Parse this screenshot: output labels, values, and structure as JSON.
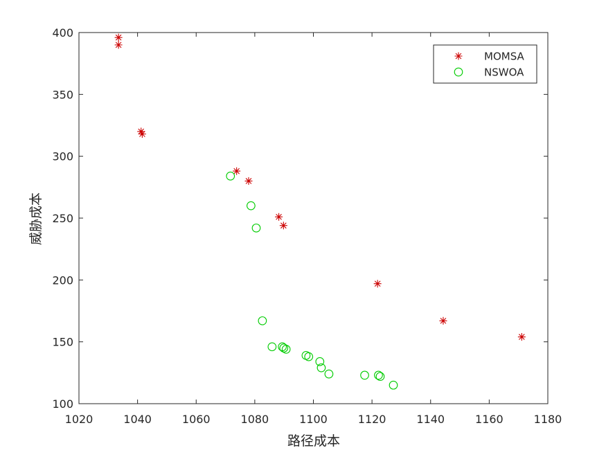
{
  "chart_data": {
    "type": "scatter",
    "title": "",
    "xlabel": "路径成本",
    "ylabel": "威胁成本",
    "xlim": [
      1020,
      1180
    ],
    "ylim": [
      100,
      400
    ],
    "xticks": [
      1020,
      1040,
      1060,
      1080,
      1100,
      1120,
      1140,
      1160,
      1180
    ],
    "yticks": [
      100,
      150,
      200,
      250,
      300,
      350,
      400
    ],
    "grid": false,
    "legend_position": "top-right",
    "series": [
      {
        "name": "MOMSA",
        "marker": "asterisk",
        "color": "#cc0000",
        "points": [
          [
            1033.5,
            396
          ],
          [
            1033.5,
            390
          ],
          [
            1041.2,
            320
          ],
          [
            1041.6,
            318
          ],
          [
            1073.8,
            288
          ],
          [
            1077.9,
            280
          ],
          [
            1088.2,
            251
          ],
          [
            1089.8,
            244
          ],
          [
            1121.9,
            197
          ],
          [
            1144.3,
            167
          ],
          [
            1171.1,
            154
          ]
        ]
      },
      {
        "name": "NSWOA",
        "marker": "circle",
        "color": "#00cc00",
        "points": [
          [
            1071.7,
            284
          ],
          [
            1078.7,
            260
          ],
          [
            1080.5,
            242
          ],
          [
            1082.6,
            167
          ],
          [
            1085.9,
            146
          ],
          [
            1089.4,
            146
          ],
          [
            1089.9,
            145
          ],
          [
            1090.7,
            144
          ],
          [
            1097.5,
            139
          ],
          [
            1098.4,
            138
          ],
          [
            1102.2,
            134
          ],
          [
            1102.7,
            129
          ],
          [
            1105.3,
            124
          ],
          [
            1117.5,
            123
          ],
          [
            1122.2,
            123
          ],
          [
            1122.8,
            122
          ],
          [
            1127.3,
            115
          ]
        ]
      }
    ]
  }
}
